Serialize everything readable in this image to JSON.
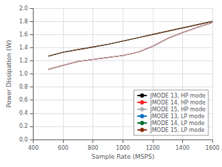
{
  "chart_data": {
    "type": "line",
    "xlabel": "Sample Rate (MSPS)",
    "ylabel": "Power Dissipation (W)",
    "x": [
      500,
      600,
      700,
      800,
      900,
      1000,
      1100,
      1200,
      1300,
      1400,
      1500,
      1600
    ],
    "series": [
      {
        "name": "JMODE 13, HP mode",
        "color": "#000000",
        "values": [
          1.07,
          1.13,
          1.19,
          1.22,
          1.25,
          1.28,
          1.33,
          1.42,
          1.54,
          1.63,
          1.71,
          1.78
        ]
      },
      {
        "name": "JMODE 14, HP mode",
        "color": "#ff2020",
        "values": [
          1.07,
          1.13,
          1.19,
          1.22,
          1.25,
          1.28,
          1.33,
          1.42,
          1.54,
          1.63,
          1.71,
          1.78
        ]
      },
      {
        "name": "JMODE 15, HP mode",
        "color": "#b0b0b0",
        "values": [
          1.07,
          1.13,
          1.19,
          1.22,
          1.25,
          1.28,
          1.33,
          1.42,
          1.54,
          1.63,
          1.71,
          1.78
        ]
      },
      {
        "name": "JMODE 13, LP mode",
        "color": "#0070c0",
        "values": [
          1.27,
          1.33,
          1.37,
          1.41,
          1.45,
          1.5,
          1.55,
          1.6,
          1.65,
          1.7,
          1.75,
          1.8
        ]
      },
      {
        "name": "JMODE 14, LP mode",
        "color": "#007030",
        "values": [
          1.27,
          1.33,
          1.37,
          1.41,
          1.45,
          1.5,
          1.55,
          1.6,
          1.65,
          1.7,
          1.75,
          1.8
        ]
      },
      {
        "name": "JMODE 15, LP mode",
        "color": "#8b3010",
        "values": [
          1.27,
          1.33,
          1.37,
          1.41,
          1.45,
          1.5,
          1.55,
          1.6,
          1.65,
          1.7,
          1.75,
          1.8
        ]
      }
    ],
    "xlim": [
      400,
      1600
    ],
    "ylim": [
      0,
      2
    ],
    "xticks": [
      400,
      600,
      800,
      1000,
      1200,
      1400,
      1600
    ],
    "yticks": [
      {
        "value": 0,
        "label": "0.0"
      },
      0.2,
      0.4,
      0.6,
      0.8,
      {
        "value": 1.0,
        "label": "1.0"
      },
      1.2,
      1.4,
      1.6,
      1.8,
      {
        "value": 2.0,
        "label": "2.0"
      }
    ],
    "grid": true,
    "legend": "lower right"
  }
}
